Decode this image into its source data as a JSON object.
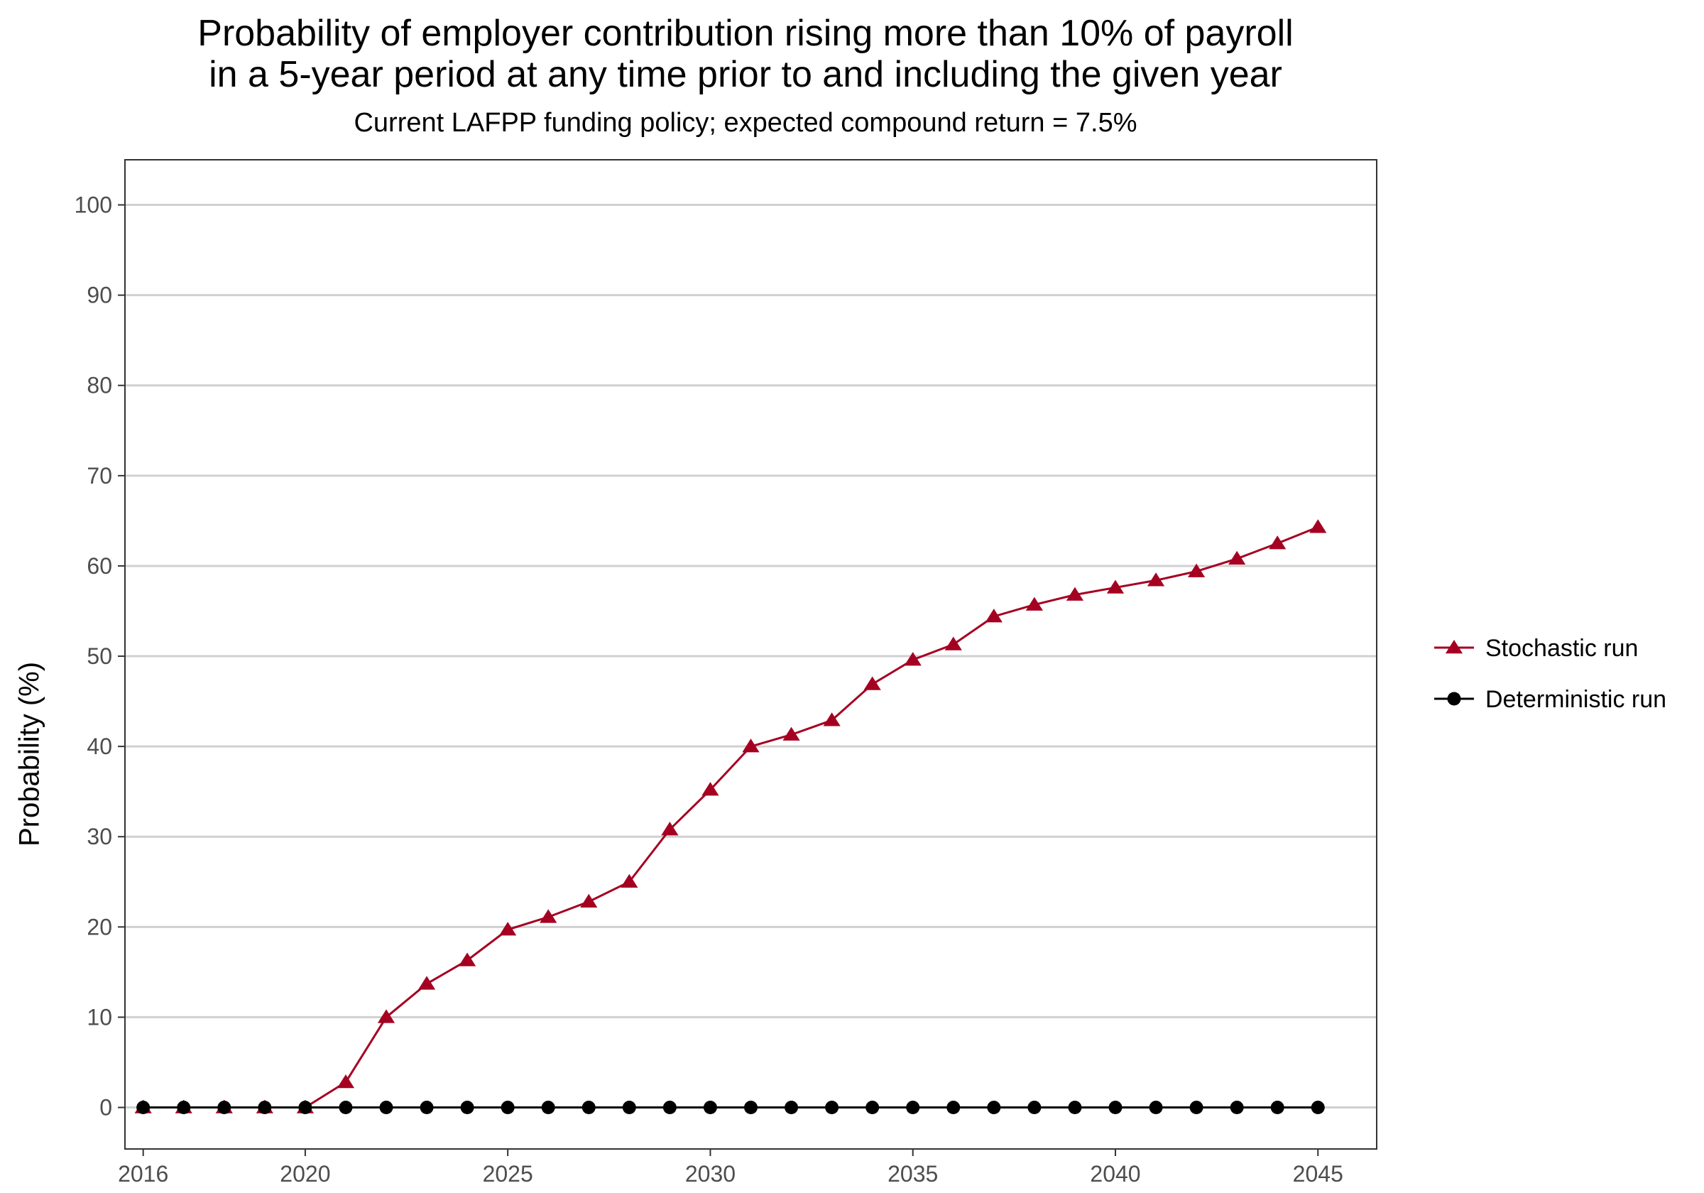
{
  "chart_data": {
    "type": "line",
    "title_lines": [
      "Probability of employer contribution rising more than 10% of payroll",
      "in a 5-year period at any time prior to and including the given year"
    ],
    "subtitle": "Current LAFPP funding policy; expected compound return = 7.5%",
    "xlabel": "",
    "ylabel": "Probability (%)",
    "xlim": [
      2015.55,
      2046.45
    ],
    "ylim": [
      -4.6,
      105
    ],
    "x_ticks": [
      2016,
      2020,
      2025,
      2030,
      2035,
      2040,
      2045
    ],
    "y_ticks": [
      0,
      10,
      20,
      30,
      40,
      50,
      60,
      70,
      80,
      90,
      100
    ],
    "grid": "horizontal major",
    "legend_position": "right",
    "x": [
      2016,
      2017,
      2018,
      2019,
      2020,
      2021,
      2022,
      2023,
      2024,
      2025,
      2026,
      2027,
      2028,
      2029,
      2030,
      2031,
      2032,
      2033,
      2034,
      2035,
      2036,
      2037,
      2038,
      2039,
      2040,
      2041,
      2042,
      2043,
      2044,
      2045
    ],
    "series": [
      {
        "name": "Stochastic run",
        "color": "#a50021",
        "marker": "triangle",
        "values": [
          0,
          0,
          0,
          0,
          0,
          2.8,
          10.0,
          13.7,
          16.3,
          19.7,
          21.1,
          22.8,
          25.0,
          30.8,
          35.2,
          40.0,
          41.3,
          42.9,
          46.9,
          49.6,
          51.3,
          54.4,
          55.7,
          56.8,
          57.6,
          58.4,
          59.4,
          60.8,
          62.5,
          64.3
        ]
      },
      {
        "name": "Deterministic run",
        "color": "#000000",
        "marker": "circle",
        "values": [
          0,
          0,
          0,
          0,
          0,
          0,
          0,
          0,
          0,
          0,
          0,
          0,
          0,
          0,
          0,
          0,
          0,
          0,
          0,
          0,
          0,
          0,
          0,
          0,
          0,
          0,
          0,
          0,
          0,
          0
        ]
      }
    ]
  }
}
